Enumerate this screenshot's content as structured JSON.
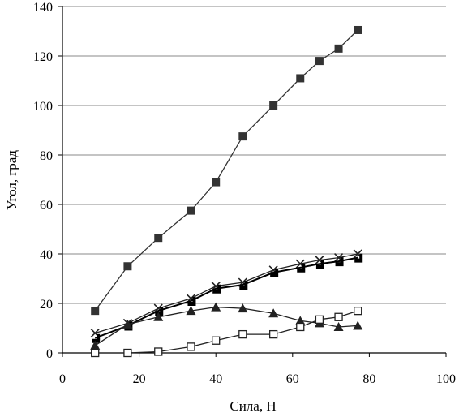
{
  "chart_data": {
    "type": "line",
    "xlabel": "Сила, Н",
    "ylabel": "Угол, град",
    "xlim": [
      0,
      100
    ],
    "ylim": [
      0,
      140
    ],
    "x_ticks": [
      "0",
      "20",
      "40",
      "60",
      "80",
      "100"
    ],
    "y_ticks": [
      "0",
      "20",
      "40",
      "60",
      "80",
      "100",
      "120",
      "140"
    ],
    "grid": "horizontal",
    "series": [
      {
        "marker": "filled-square",
        "color": "#333333",
        "x": [
          8.5,
          17,
          25,
          33.5,
          40,
          47,
          55,
          62,
          67,
          72,
          77
        ],
        "y": [
          17,
          35,
          46.5,
          57.5,
          69,
          87.5,
          100,
          111,
          118,
          123,
          130.5
        ]
      },
      {
        "marker": "x",
        "color": "#222222",
        "x": [
          8.5,
          17,
          25,
          33.5,
          40,
          47,
          55,
          62,
          67,
          72,
          77
        ],
        "y": [
          8,
          12,
          18,
          22,
          27,
          28.5,
          33.5,
          36,
          37.5,
          38.5,
          40
        ]
      },
      {
        "marker": "filled-step",
        "color": "#000000",
        "x": [
          8.5,
          17,
          25,
          33.5,
          40,
          47,
          55,
          62,
          67,
          72,
          77
        ],
        "y": [
          6,
          11,
          17,
          21,
          26,
          27.5,
          32.5,
          34.5,
          36,
          37,
          38.5
        ]
      },
      {
        "marker": "filled-triangle",
        "color": "#222222",
        "x": [
          8.5,
          17,
          25,
          33.5,
          40,
          47,
          55,
          62,
          67,
          72,
          77
        ],
        "y": [
          3,
          11.5,
          14.5,
          17,
          18.5,
          18,
          16,
          13,
          12,
          10.5,
          11
        ]
      },
      {
        "marker": "open-square",
        "color": "#222222",
        "x": [
          8.5,
          17,
          25,
          33.5,
          40,
          47,
          55,
          62,
          67,
          72,
          77
        ],
        "y": [
          0,
          0,
          0.5,
          2.5,
          5,
          7.5,
          7.5,
          10.5,
          13.5,
          14.5,
          17
        ]
      }
    ]
  }
}
